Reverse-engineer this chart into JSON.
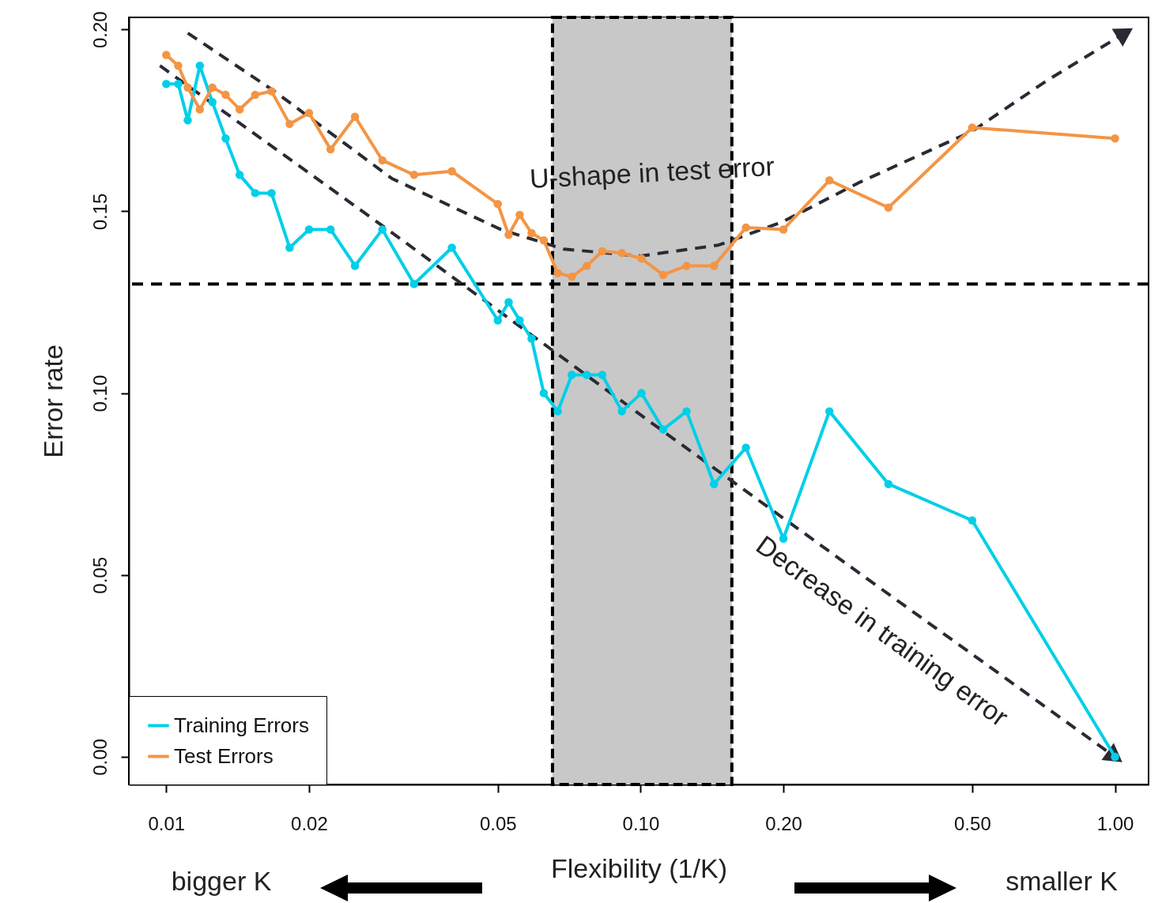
{
  "chart_data": {
    "type": "line",
    "xlabel": "Flexibility (1/K)",
    "ylabel": "Error rate",
    "log": "x",
    "x": [
      0.01,
      0.0106,
      0.0111,
      0.01177,
      0.01251,
      0.01334,
      0.01428,
      0.0154,
      0.01667,
      0.0182,
      0.02,
      0.0222,
      0.025,
      0.02855,
      0.0333,
      0.04,
      0.05,
      0.0527,
      0.0556,
      0.0589,
      0.0625,
      0.0669,
      0.0716,
      0.077,
      0.083,
      0.0913,
      0.1004,
      0.1116,
      0.125,
      0.1428,
      0.1667,
      0.2,
      0.25,
      0.333,
      0.5,
      1.0
    ],
    "series": [
      {
        "name": "Training Errors",
        "color": "#00cfe8",
        "values": [
          0.185,
          0.185,
          0.175,
          0.19,
          0.18,
          0.17,
          0.16,
          0.155,
          0.155,
          0.14,
          0.145,
          0.145,
          0.135,
          0.145,
          0.13,
          0.14,
          0.12,
          0.125,
          0.12,
          0.115,
          0.1,
          0.095,
          0.105,
          0.105,
          0.105,
          0.095,
          0.1,
          0.09,
          0.095,
          0.075,
          0.085,
          0.06,
          0.095,
          0.075,
          0.065,
          0.0
        ]
      },
      {
        "name": "Test Errors",
        "color": "#f39545",
        "values": [
          0.193,
          0.19,
          0.184,
          0.178,
          0.184,
          0.182,
          0.178,
          0.182,
          0.183,
          0.174,
          0.177,
          0.167,
          0.176,
          0.164,
          0.16,
          0.161,
          0.152,
          0.1435,
          0.149,
          0.144,
          0.142,
          0.133,
          0.132,
          0.135,
          0.139,
          0.1385,
          0.137,
          0.1325,
          0.135,
          0.135,
          0.1455,
          0.145,
          0.1585,
          0.151,
          0.173,
          0.17
        ]
      },
      {
        "type": "line",
        "color": "#2a2a35",
        "line_style": "dashed",
        "marker": "none",
        "x": [
          0.0111,
          0.0169,
          0.0299,
          0.0507,
          0.0688,
          0.1,
          0.146,
          0.1985,
          0.29,
          0.5,
          0.72,
          1.05
        ],
        "values": [
          0.199,
          0.183,
          0.159,
          0.145,
          0.1396,
          0.1377,
          0.1407,
          0.147,
          0.158,
          0.172,
          0.186,
          0.199
        ]
      },
      {
        "type": "line",
        "color": "#2a2a35",
        "line_style": "dashed",
        "marker": "none",
        "x": [
          0.0097,
          0.03,
          0.1,
          0.3,
          1.0
        ],
        "values": [
          0.19,
          0.144,
          0.094,
          0.049,
          0.0
        ]
      }
    ],
    "xlim": [
      0.00834,
      1.177
    ],
    "ylim": [
      -0.0076,
      0.2033
    ],
    "xticks": [
      {
        "value": 0.01,
        "label": "0.01"
      },
      {
        "value": 0.02,
        "label": "0.02"
      },
      {
        "value": 0.05,
        "label": "0.05"
      },
      {
        "value": 0.1,
        "label": "0.10"
      },
      {
        "value": 0.2,
        "label": "0.20"
      },
      {
        "value": 0.5,
        "label": "0.50"
      },
      {
        "value": 1.0,
        "label": "1.00"
      }
    ],
    "yticks": [
      {
        "value": 0,
        "label": "0.00"
      },
      {
        "value": 0.05,
        "label": "0.05"
      },
      {
        "value": 0.1,
        "label": "0.10"
      },
      {
        "value": 0.15,
        "label": "0.15"
      },
      {
        "value": 0.2,
        "label": "0.20"
      }
    ],
    "ref_lines": [
      {
        "axis": "y",
        "value": 0.13,
        "color": "#000000",
        "line_style": "dashed"
      }
    ],
    "bands": [
      {
        "axis": "x",
        "from": 0.0652,
        "to": 0.1557,
        "color": "#c8c8c8"
      }
    ],
    "annotations": [
      "bigger K",
      "smaller K",
      "U-shape in test error",
      "Decrease in training error"
    ],
    "marker": "circle",
    "line_style": "solid",
    "legend": "bottom left",
    "grid": false
  }
}
